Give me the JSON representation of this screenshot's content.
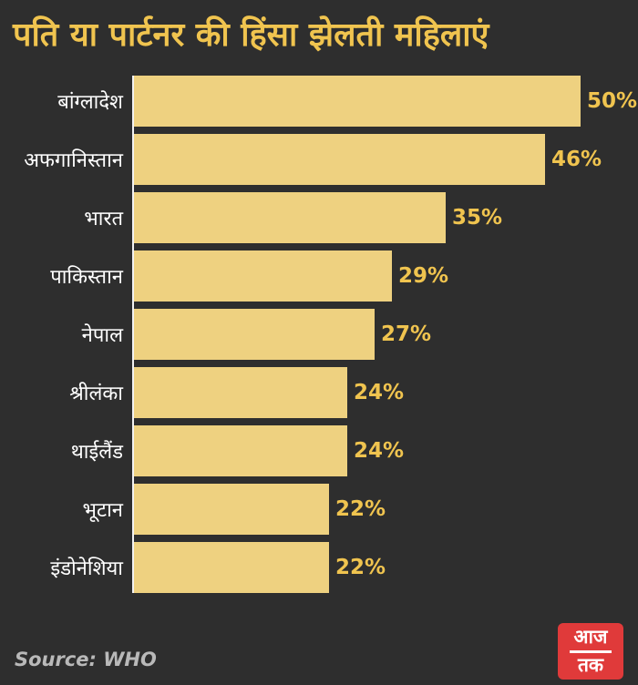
{
  "title": "पति या पार्टनर की हिंसा झेलती महिलाएं",
  "source": "Source: WHO",
  "logo": {
    "line1": "आज",
    "line2": "तक"
  },
  "colors": {
    "background": "#2e2e2e",
    "bar": "#eed180",
    "title": "#f0c44f",
    "value_label": "#f0c44f",
    "category_label": "#ffffff",
    "axis_line": "#f2f2f2",
    "source_text": "#b9b9b9",
    "logo_background": "#e03a3a"
  },
  "chart_data": {
    "type": "bar",
    "orientation": "horizontal",
    "title": "पति या पार्टनर की हिंसा झेलती महिलाएं",
    "categories": [
      "बांग्लादेश",
      "अफगानिस्तान",
      "भारत",
      "पाकिस्तान",
      "नेपाल",
      "श्रीलंका",
      "थाईलैंड",
      "भूटान",
      "इंडोनेशिया"
    ],
    "values": [
      50,
      46,
      35,
      29,
      27,
      24,
      24,
      22,
      22
    ],
    "value_suffix": "%",
    "xlabel": "",
    "ylabel": "",
    "xlim": [
      0,
      50
    ],
    "grid": false,
    "legend": false,
    "source": "WHO"
  }
}
